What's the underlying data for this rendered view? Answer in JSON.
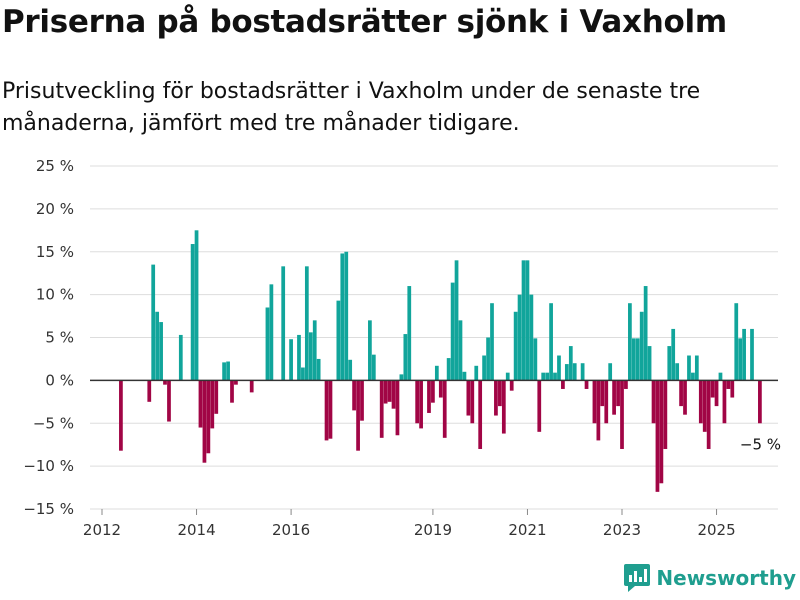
{
  "title": "Priserna på bostadsrätter sjönk i Vaxholm",
  "subtitle": "Prisutveckling för bostadsrätter i Vaxholm under de senaste tre månaderna, jämfört med tre månader tidigare.",
  "brand": {
    "name": "Newsworthy",
    "icon": "newsworthy-logo-icon",
    "color": "#1f9e8f"
  },
  "colors": {
    "positive": "#11a59b",
    "negative": "#a10545",
    "grid": "#dddddd",
    "zero": "#333333"
  },
  "chart_data": {
    "type": "bar",
    "title": "Priserna på bostadsrätter sjönk i Vaxholm",
    "xlabel": "",
    "ylabel": "",
    "unit": "%",
    "x_ticks": [
      "2012",
      "2014",
      "2016",
      "2019",
      "2021",
      "2023",
      "2025"
    ],
    "y_ticks": [
      25,
      20,
      15,
      10,
      5,
      0,
      -5,
      -10,
      -15
    ],
    "y_tick_labels": [
      "25 %",
      "20 %",
      "15 %",
      "10 %",
      "5 %",
      "0 %",
      "−5 %",
      "−10 %",
      "−15 %"
    ],
    "ylim": [
      -15,
      25
    ],
    "annotation": "−5 %",
    "series": [
      {
        "name": "Prisutveckling",
        "values": [
          {
            "x": 2012.4,
            "y": -8.2
          },
          {
            "x": 2013.0,
            "y": -2.5
          },
          {
            "x": 2013.083,
            "y": 13.5
          },
          {
            "x": 2013.167,
            "y": 8.0
          },
          {
            "x": 2013.25,
            "y": 6.8
          },
          {
            "x": 2013.333,
            "y": -0.5
          },
          {
            "x": 2013.417,
            "y": -4.8
          },
          {
            "x": 2013.667,
            "y": 5.3
          },
          {
            "x": 2013.917,
            "y": 15.9
          },
          {
            "x": 2014.0,
            "y": 17.5
          },
          {
            "x": 2014.083,
            "y": -5.5
          },
          {
            "x": 2014.167,
            "y": -9.6
          },
          {
            "x": 2014.25,
            "y": -8.5
          },
          {
            "x": 2014.333,
            "y": -5.6
          },
          {
            "x": 2014.417,
            "y": -3.9
          },
          {
            "x": 2014.583,
            "y": 2.1
          },
          {
            "x": 2014.667,
            "y": 2.2
          },
          {
            "x": 2014.75,
            "y": -2.6
          },
          {
            "x": 2014.833,
            "y": -0.5
          },
          {
            "x": 2015.167,
            "y": -1.4
          },
          {
            "x": 2015.5,
            "y": 8.5
          },
          {
            "x": 2015.583,
            "y": 11.2
          },
          {
            "x": 2015.833,
            "y": 13.3
          },
          {
            "x": 2016.0,
            "y": 4.8
          },
          {
            "x": 2016.167,
            "y": 5.3
          },
          {
            "x": 2016.25,
            "y": 1.5
          },
          {
            "x": 2016.333,
            "y": 13.3
          },
          {
            "x": 2016.417,
            "y": 5.6
          },
          {
            "x": 2016.5,
            "y": 7.0
          },
          {
            "x": 2016.583,
            "y": 2.5
          },
          {
            "x": 2016.75,
            "y": -7.0
          },
          {
            "x": 2016.833,
            "y": -6.8
          },
          {
            "x": 2017.0,
            "y": 9.3
          },
          {
            "x": 2017.083,
            "y": 14.8
          },
          {
            "x": 2017.167,
            "y": 15.0
          },
          {
            "x": 2017.25,
            "y": 2.4
          },
          {
            "x": 2017.333,
            "y": -3.5
          },
          {
            "x": 2017.417,
            "y": -8.2
          },
          {
            "x": 2017.5,
            "y": -4.7
          },
          {
            "x": 2017.667,
            "y": 7.0
          },
          {
            "x": 2017.75,
            "y": 3.0
          },
          {
            "x": 2017.917,
            "y": -6.7
          },
          {
            "x": 2018.0,
            "y": -2.7
          },
          {
            "x": 2018.083,
            "y": -2.5
          },
          {
            "x": 2018.167,
            "y": -3.3
          },
          {
            "x": 2018.25,
            "y": -6.4
          },
          {
            "x": 2018.333,
            "y": 0.7
          },
          {
            "x": 2018.417,
            "y": 5.4
          },
          {
            "x": 2018.5,
            "y": 11.0
          },
          {
            "x": 2018.667,
            "y": -5.0
          },
          {
            "x": 2018.75,
            "y": -5.6
          },
          {
            "x": 2018.917,
            "y": -3.8
          },
          {
            "x": 2019.0,
            "y": -2.6
          },
          {
            "x": 2019.083,
            "y": 1.7
          },
          {
            "x": 2019.167,
            "y": -2.0
          },
          {
            "x": 2019.25,
            "y": -6.7
          },
          {
            "x": 2019.333,
            "y": 2.6
          },
          {
            "x": 2019.417,
            "y": 11.4
          },
          {
            "x": 2019.5,
            "y": 14.0
          },
          {
            "x": 2019.583,
            "y": 7.0
          },
          {
            "x": 2019.667,
            "y": 1.0
          },
          {
            "x": 2019.75,
            "y": -4.1
          },
          {
            "x": 2019.833,
            "y": -5.0
          },
          {
            "x": 2019.917,
            "y": 1.7
          },
          {
            "x": 2020.0,
            "y": -8.0
          },
          {
            "x": 2020.083,
            "y": 2.9
          },
          {
            "x": 2020.167,
            "y": 5.0
          },
          {
            "x": 2020.25,
            "y": 9.0
          },
          {
            "x": 2020.333,
            "y": -4.1
          },
          {
            "x": 2020.417,
            "y": -3.0
          },
          {
            "x": 2020.5,
            "y": -6.2
          },
          {
            "x": 2020.583,
            "y": 0.9
          },
          {
            "x": 2020.667,
            "y": -1.2
          },
          {
            "x": 2020.75,
            "y": 8.0
          },
          {
            "x": 2020.833,
            "y": 10.0
          },
          {
            "x": 2020.917,
            "y": 14.0
          },
          {
            "x": 2021.0,
            "y": 14.0
          },
          {
            "x": 2021.083,
            "y": 10.0
          },
          {
            "x": 2021.167,
            "y": 4.9
          },
          {
            "x": 2021.25,
            "y": -6.0
          },
          {
            "x": 2021.333,
            "y": 0.9
          },
          {
            "x": 2021.417,
            "y": 0.9
          },
          {
            "x": 2021.5,
            "y": 9.0
          },
          {
            "x": 2021.583,
            "y": 0.9
          },
          {
            "x": 2021.667,
            "y": 2.9
          },
          {
            "x": 2021.75,
            "y": -1.0
          },
          {
            "x": 2021.833,
            "y": 1.9
          },
          {
            "x": 2021.917,
            "y": 4.0
          },
          {
            "x": 2022.0,
            "y": 2.0
          },
          {
            "x": 2022.167,
            "y": 2.0
          },
          {
            "x": 2022.25,
            "y": -1.0
          },
          {
            "x": 2022.417,
            "y": -5.0
          },
          {
            "x": 2022.5,
            "y": -7.0
          },
          {
            "x": 2022.583,
            "y": -3.0
          },
          {
            "x": 2022.667,
            "y": -5.0
          },
          {
            "x": 2022.75,
            "y": 2.0
          },
          {
            "x": 2022.833,
            "y": -4.0
          },
          {
            "x": 2022.917,
            "y": -3.0
          },
          {
            "x": 2023.0,
            "y": -8.0
          },
          {
            "x": 2023.083,
            "y": -1.0
          },
          {
            "x": 2023.167,
            "y": 9.0
          },
          {
            "x": 2023.25,
            "y": 4.9
          },
          {
            "x": 2023.333,
            "y": 4.9
          },
          {
            "x": 2023.417,
            "y": 8.0
          },
          {
            "x": 2023.5,
            "y": 11.0
          },
          {
            "x": 2023.583,
            "y": 4.0
          },
          {
            "x": 2023.667,
            "y": -5.0
          },
          {
            "x": 2023.75,
            "y": -13.0
          },
          {
            "x": 2023.833,
            "y": -12.0
          },
          {
            "x": 2023.917,
            "y": -8.0
          },
          {
            "x": 2024.0,
            "y": 4.0
          },
          {
            "x": 2024.083,
            "y": 6.0
          },
          {
            "x": 2024.167,
            "y": 2.0
          },
          {
            "x": 2024.25,
            "y": -3.0
          },
          {
            "x": 2024.333,
            "y": -4.0
          },
          {
            "x": 2024.417,
            "y": 2.9
          },
          {
            "x": 2024.5,
            "y": 0.9
          },
          {
            "x": 2024.583,
            "y": 2.9
          },
          {
            "x": 2024.667,
            "y": -5.0
          },
          {
            "x": 2024.75,
            "y": -6.0
          },
          {
            "x": 2024.833,
            "y": -8.0
          },
          {
            "x": 2024.917,
            "y": -2.0
          },
          {
            "x": 2025.0,
            "y": -3.0
          },
          {
            "x": 2025.083,
            "y": 0.9
          },
          {
            "x": 2025.167,
            "y": -5.0
          },
          {
            "x": 2025.25,
            "y": -1.0
          },
          {
            "x": 2025.333,
            "y": -2.0
          },
          {
            "x": 2025.417,
            "y": 9.0
          },
          {
            "x": 2025.5,
            "y": 4.9
          },
          {
            "x": 2025.583,
            "y": 6.0
          },
          {
            "x": 2025.75,
            "y": 6.0
          },
          {
            "x": 2025.917,
            "y": -5.0
          }
        ]
      }
    ]
  }
}
